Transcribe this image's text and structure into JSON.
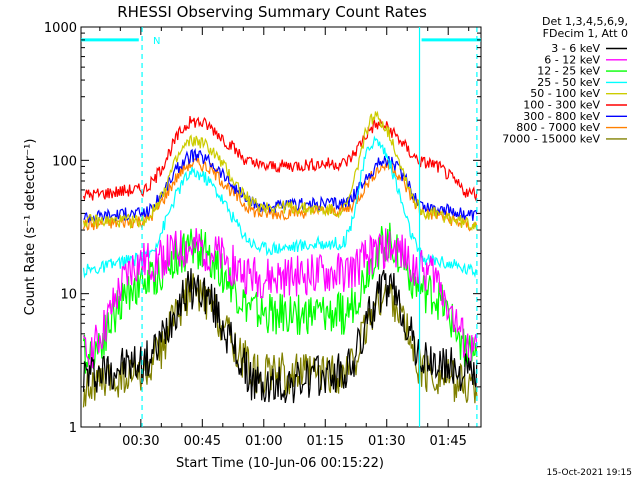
{
  "chart_data": {
    "type": "line",
    "title": "RHESSI Observing Summary Count Rates",
    "xlabel": "Start Time (10-Jun-06 00:15:22)",
    "ylabel": "Count Rate (s⁻¹ detector⁻¹)",
    "yscale": "log",
    "ylim": [
      1,
      1000
    ],
    "xlim_minutes": [
      15.4,
      113
    ],
    "x_ticks": [
      {
        "label": "00:30",
        "minute": 30
      },
      {
        "label": "00:45",
        "minute": 45
      },
      {
        "label": "01:00",
        "minute": 60
      },
      {
        "label": "01:15",
        "minute": 75
      },
      {
        "label": "01:30",
        "minute": 90
      },
      {
        "label": "01:45",
        "minute": 105
      }
    ],
    "y_ticks": [
      {
        "label": "1",
        "value": 1
      },
      {
        "label": "10",
        "value": 10
      },
      {
        "label": "100",
        "value": 100
      },
      {
        "label": "1000",
        "value": 1000
      }
    ],
    "legend_header": [
      "Det 1,3,4,5,6,9,",
      "FDecim 1, Att 0"
    ],
    "legend_position": "top-right",
    "series": [
      {
        "name": "3 - 6 keV",
        "color": "#000000",
        "x": [
          16,
          30,
          43,
          60,
          79,
          90,
          100,
          112
        ],
        "values": [
          2.5,
          3,
          11,
          2.0,
          2.5,
          11,
          3,
          2.5
        ]
      },
      {
        "name": "6 - 12 keV",
        "color": "#ff00ff",
        "x": [
          16,
          30,
          43,
          60,
          79,
          90,
          100,
          112
        ],
        "values": [
          3.5,
          17,
          22,
          13,
          14,
          22,
          15,
          3.5
        ]
      },
      {
        "name": "12 - 25 keV",
        "color": "#00ff00",
        "x": [
          16,
          30,
          43,
          60,
          79,
          90,
          100,
          112
        ],
        "values": [
          3.5,
          12,
          22,
          7,
          7,
          24,
          10,
          3.5
        ]
      },
      {
        "name": "25 - 50 keV",
        "color": "#00ffff",
        "x": [
          16,
          30,
          43,
          60,
          79,
          87,
          100,
          112
        ],
        "values": [
          15,
          18,
          80,
          22,
          24,
          140,
          18,
          15
        ]
      },
      {
        "name": "50 - 100 keV",
        "color": "#cccc00",
        "x": [
          16,
          30,
          43,
          60,
          79,
          87,
          100,
          112
        ],
        "values": [
          35,
          35,
          140,
          45,
          42,
          210,
          40,
          33
        ]
      },
      {
        "name": "100 - 300 keV",
        "color": "#ff0000",
        "x": [
          16,
          30,
          43,
          60,
          79,
          88,
          100,
          112
        ],
        "values": [
          55,
          60,
          195,
          90,
          95,
          185,
          95,
          55
        ]
      },
      {
        "name": "300 - 800 keV",
        "color": "#0000ff",
        "x": [
          16,
          30,
          43,
          60,
          79,
          90,
          100,
          112
        ],
        "values": [
          38,
          40,
          108,
          45,
          48,
          100,
          45,
          38
        ]
      },
      {
        "name": "800 - 7000 keV",
        "color": "#ff8000",
        "x": [
          16,
          30,
          43,
          60,
          79,
          90,
          100,
          112
        ],
        "values": [
          33,
          35,
          95,
          40,
          42,
          92,
          40,
          32
        ]
      },
      {
        "name": "7000 - 15000 keV",
        "color": "#808000",
        "x": [
          16,
          30,
          43,
          60,
          79,
          90,
          100,
          112
        ],
        "values": [
          2.0,
          2.5,
          10,
          2.5,
          2.5,
          10,
          2.5,
          2.0
        ]
      }
    ],
    "vlines": [
      {
        "style": "dashed",
        "minute": 30.3
      },
      {
        "style": "solid",
        "minute": 98
      },
      {
        "style": "dashed",
        "minute": 112
      }
    ],
    "segments": [
      {
        "from_minute": 15.4,
        "to_minute": 29.5,
        "value": 800
      },
      {
        "from_minute": 98.5,
        "to_minute": 113,
        "value": 800
      }
    ],
    "annotation": "N",
    "annotation_minute": 32,
    "timestamp": "15-Oct-2021 19:15"
  }
}
